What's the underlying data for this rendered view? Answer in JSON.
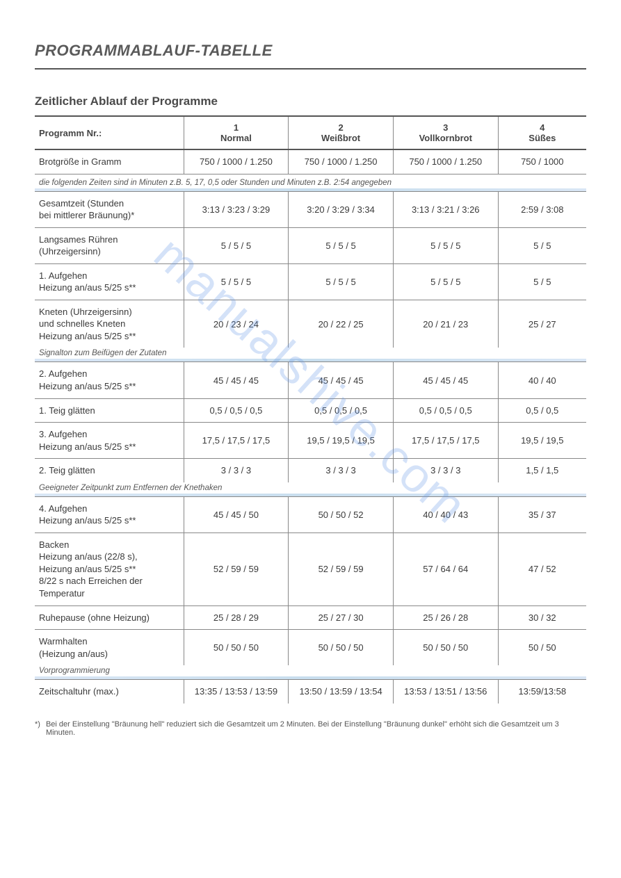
{
  "page_title": "PROGRAMMABLAUF-TABELLE",
  "subtitle": "Zeitlicher Ablauf der Programme",
  "watermark": "manualshive.com",
  "columns": {
    "row_label_header": "Programm Nr.:",
    "programs": [
      {
        "num": "1",
        "name": "Normal"
      },
      {
        "num": "2",
        "name": "Weißbrot"
      },
      {
        "num": "3",
        "name": "Vollkornbrot"
      },
      {
        "num": "4",
        "name": "Süßes"
      }
    ]
  },
  "row_brotgroesse": {
    "label": "Brotgröße in Gramm",
    "vals": [
      "750 / 1000 / 1.250",
      "750 / 1000 / 1.250",
      "750 / 1000 / 1.250",
      "750 / 1000"
    ]
  },
  "note1": "die folgenden Zeiten sind in Minuten z.B. 5, 17,  0,5 oder Stunden und Minuten z.B. 2:54 angegeben",
  "rows_block1": [
    {
      "label": "Gesamtzeit (Stunden\nbei mittlerer Bräunung)*",
      "vals": [
        "3:13 / 3:23 / 3:29",
        "3:20 / 3:29 / 3:34",
        "3:13 / 3:21 / 3:26",
        "2:59 / 3:08"
      ]
    },
    {
      "label": "Langsames Rühren\n(Uhrzeigersinn)",
      "vals": [
        "5 / 5 / 5",
        "5 / 5 / 5",
        "5 / 5 / 5",
        "5 / 5"
      ]
    },
    {
      "label": "1. Aufgehen\nHeizung an/aus 5/25 s**",
      "vals": [
        "5 / 5 / 5",
        "5 / 5 / 5",
        "5 / 5 / 5",
        "5 / 5"
      ]
    },
    {
      "label": "Kneten (Uhrzeigersinn)\nund schnelles Kneten\nHeizung an/aus  5/25 s**",
      "vals": [
        "20 / 23 / 24",
        "20 / 22 / 25",
        "20 / 21 / 23",
        "25 / 27"
      ]
    }
  ],
  "note2": "Signalton zum Beifügen der Zutaten",
  "rows_block2": [
    {
      "label": "2. Aufgehen\nHeizung an/aus 5/25 s**",
      "vals": [
        "45 / 45 / 45",
        "45 / 45 / 45",
        "45 / 45 / 45",
        "40 / 40"
      ]
    },
    {
      "label": "1. Teig glätten",
      "vals": [
        "0,5 / 0,5 / 0,5",
        "0,5 / 0,5 / 0,5",
        "0,5 / 0,5 / 0,5",
        "0,5 / 0,5"
      ]
    },
    {
      "label": "3. Aufgehen\nHeizung an/aus 5/25 s**",
      "vals": [
        "17,5 / 17,5 / 17,5",
        "19,5 / 19,5 / 19,5",
        "17,5 / 17,5 / 17,5",
        "19,5 / 19,5"
      ]
    },
    {
      "label": "2. Teig glätten",
      "vals": [
        "3 / 3 / 3",
        "3 / 3 / 3",
        "3 / 3 / 3",
        "1,5 / 1,5"
      ]
    }
  ],
  "note3": "Geeigneter Zeitpunkt zum Entfernen der Knethaken",
  "rows_block3": [
    {
      "label": "4. Aufgehen\nHeizung an/aus 5/25 s**",
      "vals": [
        "45 / 45 / 50",
        "50 / 50 / 52",
        "40 / 40 / 43",
        "35 / 37"
      ]
    },
    {
      "label": "Backen\nHeizung an/aus (22/8 s),\nHeizung an/aus 5/25 s**\n8/22 s nach Erreichen der\nTemperatur",
      "vals": [
        "52 / 59 / 59",
        "52 / 59 / 59",
        "57 / 64 / 64",
        "47 / 52"
      ]
    },
    {
      "label": "Ruhepause (ohne Heizung)",
      "vals": [
        "25 / 28 / 29",
        "25 / 27 / 30",
        "25 / 26 / 28",
        "30 / 32"
      ]
    },
    {
      "label": "Warmhalten\n(Heizung an/aus)",
      "vals": [
        "50 / 50 / 50",
        "50 / 50 / 50",
        "50 / 50 / 50",
        "50 / 50"
      ]
    }
  ],
  "note4": "Vorprogrammierung",
  "rows_block4": [
    {
      "label": "Zeitschaltuhr (max.)",
      "vals": [
        "13:35 / 13:53 / 13:59",
        "13:50 / 13:59 / 13:54",
        "13:53 / 13:51 / 13:56",
        "13:59/13:58"
      ]
    }
  ],
  "footnote_marker": "*)",
  "footnote_text": "Bei der Einstellung \"Bräunung hell\" reduziert sich die Gesamtzeit um 2 Minuten. Bei der Einstellung \"Bräunung dunkel\" erhöht sich die Gesamtzeit um 3 Minuten.",
  "styles": {
    "title_fontsize": 22,
    "subtitle_fontsize": 17,
    "body_fontsize": 13,
    "note_fontsize": 11.5,
    "footnote_fontsize": 11,
    "border_color": "#555555",
    "light_border_color": "#888888",
    "bluebar_color": "#d0e2f0",
    "watermark_color": "rgba(100,150,230,0.28)",
    "text_color": "#3a3a3a",
    "background_color": "#ffffff"
  }
}
